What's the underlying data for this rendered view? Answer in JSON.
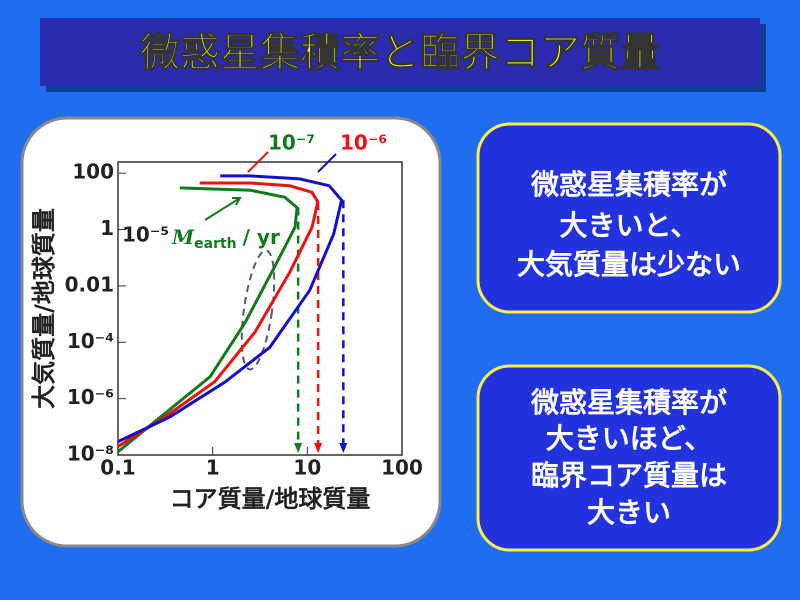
{
  "title": "微惑星集積率と臨界コア質量",
  "chart_data": {
    "type": "line",
    "x_label": "コア質量/地球質量",
    "y_label": "大気質量/地球質量",
    "x_scale": "log",
    "y_scale": "log",
    "xlim": [
      0.1,
      100
    ],
    "ylim": [
      1e-08,
      250
    ],
    "xticks": [
      0.1,
      1,
      10,
      100
    ],
    "yticks": [
      100,
      1,
      0.01,
      {
        "value": 0.0001,
        "label": "10⁻⁴"
      },
      {
        "value": 1e-06,
        "label": "10⁻⁶"
      },
      {
        "value": 1e-08,
        "label": "10⁻⁸"
      }
    ],
    "unit_label": {
      "symbol": "M",
      "subscript": "earth",
      "rest": "/ yr"
    },
    "series": [
      {
        "name": "10⁻⁷",
        "color": "#147a1e",
        "critical_core_mass": 8,
        "x": [
          0.1,
          0.28,
          0.94,
          2.2,
          4.5,
          7.4,
          7.8,
          5.8,
          2.5,
          0.45
        ],
        "values": [
          1.3e-08,
          2.2e-07,
          6e-06,
          0.0005,
          0.047,
          1.2,
          6,
          14,
          25,
          30
        ]
      },
      {
        "name": "10⁻⁶",
        "color": "#ee1111",
        "critical_core_mass": 13,
        "x": [
          0.1,
          0.31,
          1.05,
          2.8,
          6.5,
          11.2,
          12.9,
          11.2,
          6.5,
          2.5,
          0.73
        ],
        "values": [
          2e-08,
          2.2e-07,
          4e-06,
          0.00023,
          0.03,
          1.2,
          9.5,
          21,
          36,
          45,
          45
        ]
      },
      {
        "name": "10⁻⁵",
        "color": "#1111cc",
        "critical_core_mass": 24,
        "x": [
          0.1,
          0.35,
          1.35,
          4,
          10.6,
          19,
          23,
          17,
          8.3,
          2.5,
          1.2
        ],
        "values": [
          3e-08,
          2.2e-07,
          3.9e-06,
          6.6e-05,
          0.007,
          0.7,
          11,
          36,
          63,
          80,
          80
        ]
      }
    ]
  },
  "boxes": [
    {
      "lines": [
        "微惑星集積率が",
        "大きいと、",
        "大気質量は少ない"
      ]
    },
    {
      "lines": [
        "微惑星集積率が",
        "大きいほど、",
        "臨界コア質量は",
        "大きい"
      ]
    }
  ]
}
